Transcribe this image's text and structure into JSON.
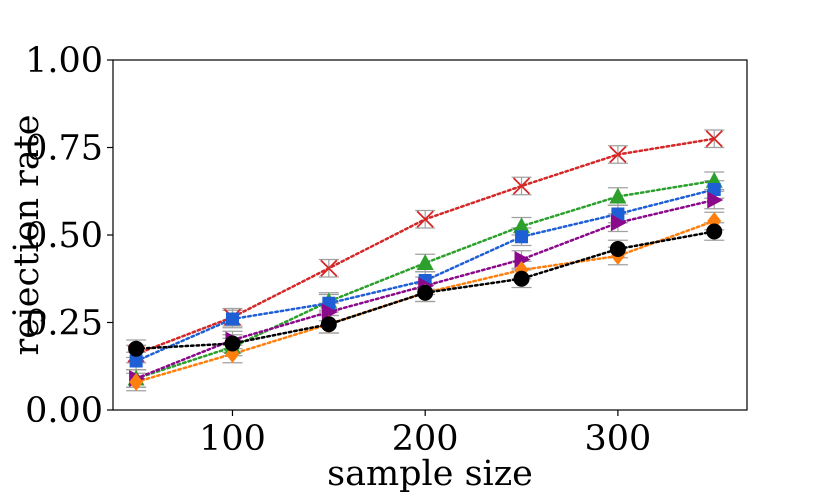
{
  "chart_data": {
    "type": "line",
    "title": "",
    "xlabel": "sample size",
    "ylabel": "rejection rate",
    "xlim": [
      38,
      367
    ],
    "ylim": [
      0,
      1.0
    ],
    "x_ticks": [
      100,
      200,
      300
    ],
    "x_tick_labels": [
      "100",
      "200",
      "300"
    ],
    "y_ticks": [
      0.0,
      0.25,
      0.5,
      0.75,
      1.0
    ],
    "y_tick_labels": [
      "0.00",
      "0.25",
      "0.50",
      "0.75",
      "1.00"
    ],
    "grid": false,
    "x": [
      50,
      100,
      150,
      200,
      250,
      300,
      350
    ],
    "series": [
      {
        "name": "series-red-x",
        "color": "#d62728",
        "marker": "x",
        "values": [
          0.16,
          0.265,
          0.405,
          0.545,
          0.64,
          0.73,
          0.775
        ],
        "error": 0.025
      },
      {
        "name": "series-green-triangle",
        "color": "#2ca02c",
        "marker": "triangle-up",
        "values": [
          0.09,
          0.18,
          0.31,
          0.42,
          0.525,
          0.61,
          0.655
        ],
        "error": 0.025
      },
      {
        "name": "series-blue-square",
        "color": "#1f5fd6",
        "marker": "square",
        "values": [
          0.14,
          0.26,
          0.305,
          0.37,
          0.495,
          0.56,
          0.63
        ],
        "error": 0.025
      },
      {
        "name": "series-purple-triangle-right",
        "color": "#8b0a8b",
        "marker": "triangle-right",
        "values": [
          0.09,
          0.2,
          0.28,
          0.355,
          0.43,
          0.535,
          0.6
        ],
        "error": 0.025
      },
      {
        "name": "series-orange-diamond",
        "color": "#ff7f0e",
        "marker": "diamond",
        "values": [
          0.08,
          0.16,
          0.245,
          0.335,
          0.4,
          0.44,
          0.54
        ],
        "error": 0.025
      },
      {
        "name": "series-black-circle",
        "color": "#000000",
        "marker": "circle",
        "values": [
          0.175,
          0.19,
          0.245,
          0.335,
          0.375,
          0.46,
          0.51
        ],
        "error": 0.025
      }
    ]
  },
  "colors": {
    "errorbar": "#a0a0a0",
    "axis": "#000000",
    "background": "#ffffff"
  }
}
